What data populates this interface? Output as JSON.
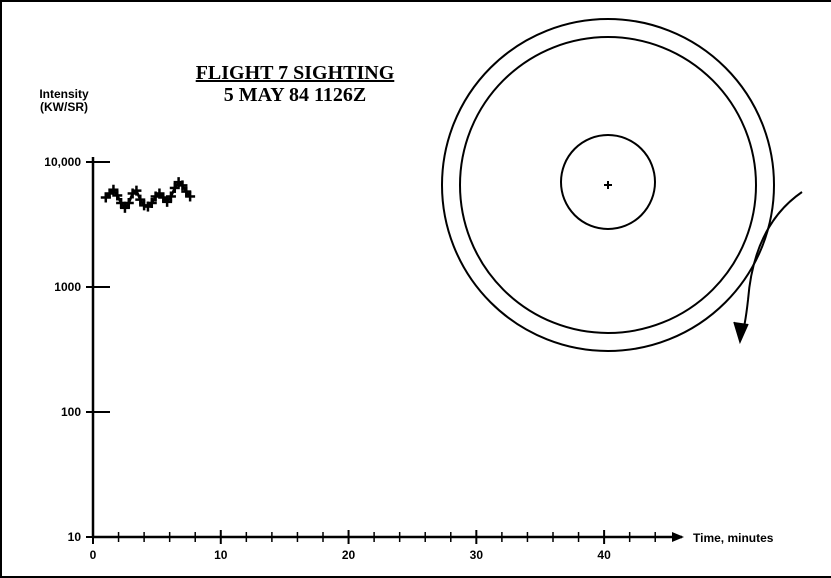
{
  "title_line1": "FLIGHT 7 SIGHTING",
  "title_line2": "5 MAY 84 1126Z",
  "ylabel_line1": "Intensity",
  "ylabel_line2": "(KW/SR)",
  "xlabel": "Time, minutes",
  "chart_data": {
    "type": "line",
    "title": "FLIGHT 7 SIGHTING 5 MAY 84 1126Z",
    "xlabel": "Time, minutes",
    "ylabel": "Intensity (KW/SR)",
    "y_scale": "log",
    "xlim": [
      0,
      45
    ],
    "ylim": [
      10,
      10000
    ],
    "x_ticks": [
      0,
      10,
      20,
      30,
      40
    ],
    "x_tick_labels": [
      "0",
      "10",
      "20",
      "30",
      "40"
    ],
    "y_ticks": [
      10,
      100,
      1000,
      10000
    ],
    "y_tick_labels": [
      "10",
      "100",
      "1000",
      "10,000"
    ],
    "series": [
      {
        "marker": "+",
        "color": "#000000",
        "x": [
          1.0,
          1.3,
          1.6,
          1.9,
          2.2,
          2.5,
          2.8,
          3.1,
          3.4,
          3.7,
          4.0,
          4.3,
          4.6,
          4.9,
          5.2,
          5.5,
          5.8,
          6.1,
          6.4,
          6.7,
          7.0,
          7.3,
          7.6
        ],
        "y": [
          5200,
          5600,
          6000,
          5400,
          4700,
          4300,
          4700,
          5600,
          5900,
          5000,
          4500,
          4400,
          4700,
          5300,
          5600,
          5200,
          4800,
          5300,
          6200,
          6900,
          6500,
          5800,
          5300
        ]
      }
    ]
  }
}
